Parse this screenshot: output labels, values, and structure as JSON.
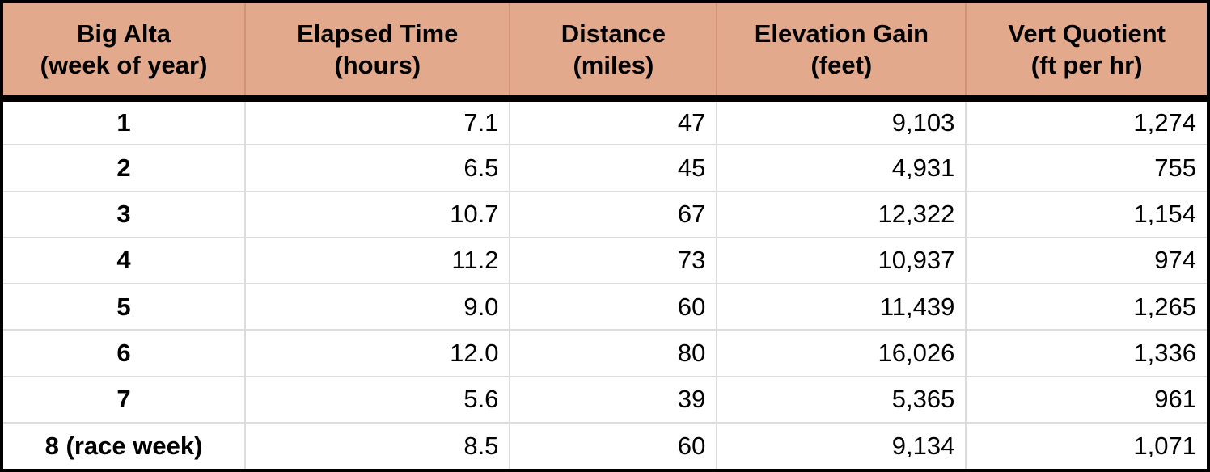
{
  "table": {
    "columns": [
      {
        "title": "Big Alta",
        "subtitle": "(week of year)"
      },
      {
        "title": "Elapsed Time",
        "subtitle": "(hours)"
      },
      {
        "title": "Distance",
        "subtitle": "(miles)"
      },
      {
        "title": "Elevation Gain",
        "subtitle": "(feet)"
      },
      {
        "title": "Vert Quotient",
        "subtitle": "(ft per hr)"
      }
    ],
    "rows": [
      {
        "week": "1",
        "hours": "7.1",
        "miles": "47",
        "gain": "9,103",
        "vq": "1,274"
      },
      {
        "week": "2",
        "hours": "6.5",
        "miles": "45",
        "gain": "4,931",
        "vq": "755"
      },
      {
        "week": "3",
        "hours": "10.7",
        "miles": "67",
        "gain": "12,322",
        "vq": "1,154"
      },
      {
        "week": "4",
        "hours": "11.2",
        "miles": "73",
        "gain": "10,937",
        "vq": "974"
      },
      {
        "week": "5",
        "hours": "9.0",
        "miles": "60",
        "gain": "11,439",
        "vq": "1,265"
      },
      {
        "week": "6",
        "hours": "12.0",
        "miles": "80",
        "gain": "16,026",
        "vq": "1,336"
      },
      {
        "week": "7",
        "hours": "5.6",
        "miles": "39",
        "gain": "5,365",
        "vq": "961"
      },
      {
        "week": "8 (race week)",
        "hours": "8.5",
        "miles": "60",
        "gain": "9,134",
        "vq": "1,071"
      }
    ]
  },
  "colors": {
    "header_bg": "#E2A98C",
    "header_divider": "#CE9379",
    "grid_line": "#DCDCDC",
    "border": "#000000",
    "row_bg": "#FFFFFF",
    "text": "#000000"
  },
  "chart_data": {
    "type": "table",
    "columns": [
      "Big Alta (week of year)",
      "Elapsed Time (hours)",
      "Distance (miles)",
      "Elevation Gain (feet)",
      "Vert Quotient (ft per hr)"
    ],
    "rows": [
      [
        "1",
        7.1,
        47,
        9103,
        1274
      ],
      [
        "2",
        6.5,
        45,
        4931,
        755
      ],
      [
        "3",
        10.7,
        67,
        12322,
        1154
      ],
      [
        "4",
        11.2,
        73,
        10937,
        974
      ],
      [
        "5",
        9.0,
        60,
        11439,
        1265
      ],
      [
        "6",
        12.0,
        80,
        16026,
        1336
      ],
      [
        "7",
        5.6,
        39,
        5365,
        961
      ],
      [
        "8 (race week)",
        8.5,
        60,
        9134,
        1071
      ]
    ],
    "layout_hints": {
      "header_fill": "#E2A98C",
      "first_column_bold_centered": true,
      "numeric_columns_right_aligned": true,
      "grid": true
    }
  }
}
